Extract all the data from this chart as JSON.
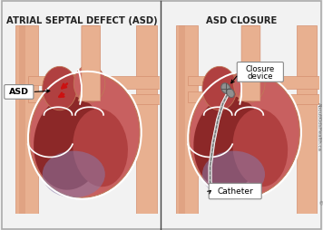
{
  "title_left": "ATRIAL SEPTAL DEFECT (ASD)",
  "title_right": "ASD CLOSURE",
  "title_fontsize": 7.2,
  "title_fontweight": "bold",
  "bg_color": "#f2f2f2",
  "border_color": "#aaaaaa",
  "divider_color": "#444444",
  "watermark": "AboutKidsHealth.ca",
  "skin_lightest": "#f0c8a8",
  "skin_light": "#e8b090",
  "skin_medium": "#d49070",
  "skin_dark": "#c07858",
  "heart_outer": "#c86060",
  "heart_mid": "#b04040",
  "heart_dark": "#8c2828",
  "heart_rv": "#9b4050",
  "heart_lv_purple": "#8878a8",
  "white_line": "#ffffff",
  "asd_red": "#cc1111",
  "catheter_color": "#b0b0b0",
  "device_color": "#909090",
  "label_bg": "#ffffff",
  "label_border": "#888888",
  "arrow_color": "#333333"
}
